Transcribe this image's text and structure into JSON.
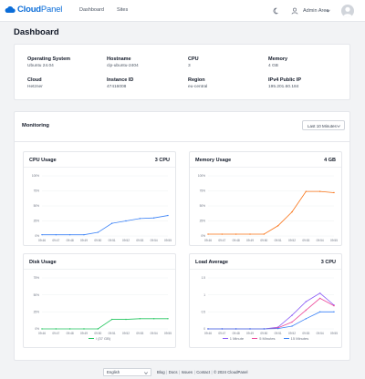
{
  "app": {
    "logo_bold": "Cloud",
    "logo_light": "Panel"
  },
  "nav": {
    "dashboard": "Dashboard",
    "sites": "Sites"
  },
  "user": {
    "name": "Admin Area"
  },
  "page": {
    "title": "Dashboard"
  },
  "info": [
    {
      "label": "Operating System",
      "value": "Ubuntu 24.04"
    },
    {
      "label": "Hostname",
      "value": "clp-ubuntu-2404"
    },
    {
      "label": "CPU",
      "value": "3"
    },
    {
      "label": "Memory",
      "value": "4 GB"
    },
    {
      "label": "Cloud",
      "value": "Hetzner"
    },
    {
      "label": "Instance ID",
      "value": "47416008"
    },
    {
      "label": "Region",
      "value": "eu-central"
    },
    {
      "label": "IPv4 Public IP",
      "value": "195.201.60.184"
    }
  ],
  "monitoring": {
    "title": "Monitoring",
    "range": "Last 10 Minutes"
  },
  "charts": {
    "cpu": {
      "title": "CPU Usage",
      "meta": "3 CPU"
    },
    "memory": {
      "title": "Memory Usage",
      "meta": "4 GB"
    },
    "disk": {
      "title": "Disk Usage",
      "meta": "",
      "legend": "/ (37 GB)"
    },
    "load": {
      "title": "Load Average",
      "meta": "3 CPU",
      "legend": [
        "1 Minute",
        "5 Minutes",
        "15 Minutes"
      ]
    }
  },
  "chart_data": [
    {
      "type": "line",
      "title": "CPU Usage",
      "x": [
        "09:46",
        "09:47",
        "09:48",
        "09:49",
        "09:50",
        "09:51",
        "09:52",
        "09:53",
        "09:54",
        "09:55"
      ],
      "ylim": [
        0,
        100
      ],
      "yticks": [
        0,
        25,
        50,
        75,
        100
      ],
      "series": [
        {
          "color": "#3b82f6",
          "values": [
            2,
            2,
            2,
            2,
            6,
            21,
            25,
            29,
            30,
            34
          ]
        }
      ]
    },
    {
      "type": "line",
      "title": "Memory Usage",
      "x": [
        "09:46",
        "09:47",
        "09:48",
        "09:49",
        "09:50",
        "09:51",
        "09:52",
        "09:53",
        "09:54",
        "09:55"
      ],
      "ylim": [
        0,
        100
      ],
      "yticks": [
        0,
        25,
        50,
        75,
        100
      ],
      "series": [
        {
          "color": "#f97316",
          "values": [
            3,
            3,
            3,
            3,
            3,
            17,
            40,
            74,
            74,
            72
          ]
        }
      ]
    },
    {
      "type": "line",
      "title": "Disk Usage",
      "x": [
        "09:46",
        "09:47",
        "09:48",
        "09:49",
        "09:50",
        "09:51",
        "09:52",
        "09:53",
        "09:54",
        "09:55"
      ],
      "ylim": [
        0,
        75
      ],
      "yticks": [
        0,
        25,
        50,
        75
      ],
      "series": [
        {
          "name": "/ (37 GB)",
          "color": "#22c55e",
          "values": [
            0,
            0,
            0,
            0,
            0,
            14,
            14,
            15,
            15,
            15
          ]
        }
      ]
    },
    {
      "type": "line",
      "title": "Load Average",
      "x": [
        "09:46",
        "09:47",
        "09:48",
        "09:49",
        "09:50",
        "09:51",
        "09:52",
        "09:53",
        "09:54",
        "09:55"
      ],
      "ylim": [
        0,
        1.5
      ],
      "yticks": [
        0,
        0.5,
        1,
        1.5
      ],
      "series": [
        {
          "name": "1 Minute",
          "color": "#8b5cf6",
          "values": [
            0,
            0,
            0,
            0,
            0,
            0.05,
            0.4,
            0.8,
            1.05,
            0.7
          ]
        },
        {
          "name": "5 Minutes",
          "color": "#ec4899",
          "values": [
            0,
            0,
            0,
            0,
            0,
            0.03,
            0.2,
            0.55,
            0.9,
            0.68
          ]
        },
        {
          "name": "15 Minutes",
          "color": "#3b82f6",
          "values": [
            0,
            0,
            0,
            0,
            0,
            0.01,
            0.08,
            0.3,
            0.5,
            0.5
          ]
        }
      ]
    }
  ],
  "footer": {
    "language": "English",
    "links": [
      "Blog",
      "Docs",
      "Issues",
      "Contact"
    ],
    "copyright": "© 2024  CloudPanel"
  }
}
